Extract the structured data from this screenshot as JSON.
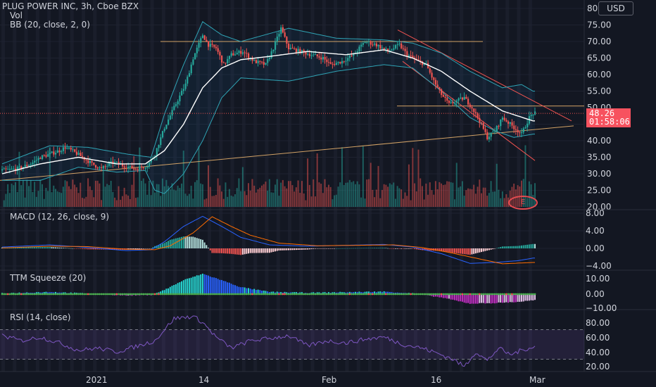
{
  "header": {
    "title": "PLUG POWER INC, 3h, Cboe BZX",
    "vol": "Vol",
    "bb": "BB (20, close, 2, 0)"
  },
  "currency": "USD",
  "last_price": "48.26",
  "countdown": "01:58:06",
  "earnings_marker": "E",
  "x_axis": {
    "labels": [
      "2021",
      "14",
      "Feb",
      "16",
      "Mar"
    ]
  },
  "panes": {
    "macd": {
      "title": "MACD (12, 26, close, 9)",
      "ticks": [
        "8.00",
        "4.00",
        "0.00",
        "−4.00"
      ]
    },
    "ttm": {
      "title": "TTM Squeeze (20)",
      "ticks": [
        "10.00",
        "0.00",
        "−10.00"
      ]
    },
    "rsi": {
      "title": "RSI (14, close)",
      "ticks": [
        "80.00",
        "60.00",
        "40.00",
        "20.00"
      ]
    }
  },
  "colors": {
    "background": "#131722",
    "up": "#26a69a",
    "down": "#ef5350",
    "bb_band": "#2fa3b4",
    "bb_basis": "#ffffff",
    "macd_line": "#2962ff",
    "signal_line": "#ff6d00",
    "rsi_line": "#7e57c2",
    "ttm_up": "#26d5d0",
    "ttm_down": "#c12fc1",
    "trendline": "#d2a266"
  },
  "chart_data": [
    {
      "type": "candlestick",
      "title": "PLUG POWER INC, 3h, Cboe BZX",
      "ylim": [
        20,
        80
      ],
      "y_ticks": [
        20,
        25,
        30,
        35,
        40,
        45,
        50,
        55,
        60,
        65,
        70,
        75,
        80
      ],
      "close_path": [
        [
          0,
          31
        ],
        [
          8,
          31.5
        ],
        [
          15,
          33
        ],
        [
          20,
          35
        ],
        [
          25,
          36
        ],
        [
          30,
          37
        ],
        [
          33,
          38
        ],
        [
          38,
          36.5
        ],
        [
          42,
          35
        ],
        [
          47,
          33
        ],
        [
          52,
          31.5
        ],
        [
          58,
          33.5
        ],
        [
          63,
          32.5
        ],
        [
          70,
          31.5
        ],
        [
          76,
          32.5
        ],
        [
          80,
          36
        ],
        [
          85,
          44
        ],
        [
          90,
          50
        ],
        [
          96,
          57
        ],
        [
          100,
          65
        ],
        [
          105,
          72
        ],
        [
          108,
          69
        ],
        [
          112,
          68
        ],
        [
          116,
          63
        ],
        [
          120,
          66
        ],
        [
          126,
          67
        ],
        [
          132,
          64
        ],
        [
          138,
          63
        ],
        [
          142,
          68
        ],
        [
          146,
          74
        ],
        [
          150,
          68
        ],
        [
          156,
          67
        ],
        [
          162,
          66
        ],
        [
          168,
          65
        ],
        [
          172,
          63
        ],
        [
          178,
          64
        ],
        [
          184,
          66
        ],
        [
          190,
          70
        ],
        [
          196,
          69
        ],
        [
          202,
          67
        ],
        [
          208,
          69
        ],
        [
          212,
          66
        ],
        [
          218,
          64
        ],
        [
          222,
          63
        ],
        [
          226,
          58
        ],
        [
          230,
          54
        ],
        [
          234,
          51
        ],
        [
          238,
          52
        ],
        [
          242,
          53
        ],
        [
          246,
          50
        ],
        [
          250,
          46
        ],
        [
          254,
          41
        ],
        [
          258,
          43
        ],
        [
          262,
          47
        ],
        [
          266,
          45
        ],
        [
          270,
          43
        ],
        [
          272,
          42
        ],
        [
          276,
          47
        ],
        [
          278,
          48.26
        ]
      ],
      "bb_basis_path": [
        [
          0,
          30
        ],
        [
          20,
          33
        ],
        [
          40,
          35
        ],
        [
          60,
          33
        ],
        [
          75,
          33
        ],
        [
          85,
          37
        ],
        [
          95,
          45
        ],
        [
          105,
          56
        ],
        [
          115,
          62
        ],
        [
          125,
          64.5
        ],
        [
          140,
          65.5
        ],
        [
          160,
          67
        ],
        [
          180,
          66
        ],
        [
          200,
          67.5
        ],
        [
          215,
          65
        ],
        [
          230,
          61
        ],
        [
          245,
          55
        ],
        [
          262,
          49
        ],
        [
          278,
          46
        ]
      ],
      "bb_upper_path": [
        [
          0,
          33
        ],
        [
          25,
          38.5
        ],
        [
          45,
          38
        ],
        [
          65,
          36
        ],
        [
          78,
          35
        ],
        [
          85,
          48
        ],
        [
          95,
          63
        ],
        [
          105,
          76
        ],
        [
          115,
          72
        ],
        [
          125,
          70
        ],
        [
          150,
          74
        ],
        [
          175,
          71
        ],
        [
          200,
          70.5
        ],
        [
          215,
          69.5
        ],
        [
          230,
          66.5
        ],
        [
          245,
          61
        ],
        [
          262,
          56
        ],
        [
          272,
          57
        ],
        [
          278,
          55
        ]
      ],
      "bb_lower_path": [
        [
          0,
          28
        ],
        [
          20,
          28
        ],
        [
          40,
          32
        ],
        [
          60,
          30.5
        ],
        [
          75,
          31
        ],
        [
          80,
          25
        ],
        [
          85,
          24
        ],
        [
          95,
          30
        ],
        [
          105,
          40
        ],
        [
          115,
          53
        ],
        [
          125,
          59
        ],
        [
          150,
          58
        ],
        [
          175,
          61
        ],
        [
          200,
          63
        ],
        [
          215,
          62
        ],
        [
          230,
          55
        ],
        [
          245,
          47
        ],
        [
          258,
          43
        ],
        [
          268,
          41
        ],
        [
          278,
          42
        ]
      ],
      "volume_scale": [
        0,
        30
      ],
      "macd_path": [
        [
          0,
          0.3
        ],
        [
          25,
          0.8
        ],
        [
          45,
          0.2
        ],
        [
          65,
          -0.5
        ],
        [
          78,
          -0.3
        ],
        [
          85,
          1.5
        ],
        [
          95,
          5
        ],
        [
          105,
          7.3
        ],
        [
          115,
          5
        ],
        [
          125,
          2.5
        ],
        [
          140,
          0.8
        ],
        [
          160,
          0.5
        ],
        [
          180,
          0.7
        ],
        [
          200,
          0.9
        ],
        [
          215,
          0.3
        ],
        [
          230,
          -1.2
        ],
        [
          245,
          -3.4
        ],
        [
          258,
          -3.2
        ],
        [
          270,
          -2.8
        ],
        [
          278,
          -2.2
        ]
      ],
      "signal_path": [
        [
          0,
          0.1
        ],
        [
          25,
          0.5
        ],
        [
          45,
          0.4
        ],
        [
          65,
          -0.2
        ],
        [
          80,
          -0.3
        ],
        [
          88,
          0.6
        ],
        [
          100,
          3.5
        ],
        [
          110,
          7.2
        ],
        [
          120,
          5
        ],
        [
          130,
          3
        ],
        [
          145,
          1.2
        ],
        [
          165,
          0.6
        ],
        [
          185,
          0.7
        ],
        [
          205,
          0.8
        ],
        [
          220,
          0.2
        ],
        [
          235,
          -1
        ],
        [
          250,
          -2.4
        ],
        [
          262,
          -3.5
        ],
        [
          278,
          -3.2
        ]
      ],
      "rsi_path": [
        [
          0,
          62
        ],
        [
          10,
          55
        ],
        [
          20,
          60
        ],
        [
          30,
          52
        ],
        [
          40,
          42
        ],
        [
          50,
          45
        ],
        [
          60,
          40
        ],
        [
          70,
          47
        ],
        [
          80,
          55
        ],
        [
          90,
          85
        ],
        [
          100,
          88
        ],
        [
          105,
          80
        ],
        [
          112,
          60
        ],
        [
          120,
          45
        ],
        [
          130,
          55
        ],
        [
          140,
          58
        ],
        [
          150,
          62
        ],
        [
          160,
          48
        ],
        [
          170,
          55
        ],
        [
          180,
          52
        ],
        [
          190,
          57
        ],
        [
          200,
          60
        ],
        [
          210,
          50
        ],
        [
          220,
          45
        ],
        [
          228,
          38
        ],
        [
          236,
          30
        ],
        [
          242,
          20
        ],
        [
          248,
          40
        ],
        [
          254,
          28
        ],
        [
          260,
          45
        ],
        [
          266,
          36
        ],
        [
          272,
          42
        ],
        [
          278,
          47
        ]
      ]
    }
  ]
}
